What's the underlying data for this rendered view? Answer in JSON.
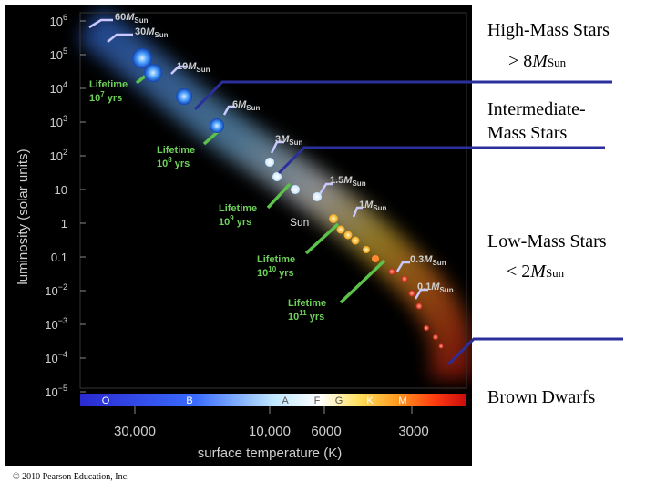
{
  "figure": {
    "ylabel": "luminosity (solar units)",
    "xlabel": "surface temperature (K)",
    "y_ticks": [
      {
        "base": "10",
        "exp": "6"
      },
      {
        "base": "10",
        "exp": "5"
      },
      {
        "base": "10",
        "exp": "4"
      },
      {
        "base": "10",
        "exp": "3"
      },
      {
        "base": "10",
        "exp": "2"
      },
      {
        "base": "10",
        "exp": ""
      },
      {
        "base": "1",
        "exp": ""
      },
      {
        "base": "0.1",
        "exp": ""
      },
      {
        "base": "10",
        "exp": "−2"
      },
      {
        "base": "10",
        "exp": "−3"
      },
      {
        "base": "10",
        "exp": "−4"
      },
      {
        "base": "10",
        "exp": "−5"
      }
    ],
    "x_ticks": [
      "30,000",
      "10,000",
      "6000",
      "3000"
    ],
    "spectral_classes": [
      "O",
      "B",
      "A",
      "F",
      "G",
      "K",
      "M"
    ],
    "mass_labels": [
      {
        "num": "60",
        "unit": "M",
        "sub": "Sun"
      },
      {
        "num": "30",
        "unit": "M",
        "sub": "Sun"
      },
      {
        "num": "10",
        "unit": "M",
        "sub": "Sun"
      },
      {
        "num": "6",
        "unit": "M",
        "sub": "Sun"
      },
      {
        "num": "3",
        "unit": "M",
        "sub": "Sun"
      },
      {
        "num": "1.5",
        "unit": "M",
        "sub": "Sun"
      },
      {
        "num": "1",
        "unit": "M",
        "sub": "Sun"
      },
      {
        "num": "0.3",
        "unit": "M",
        "sub": "Sun"
      },
      {
        "num": "0.1",
        "unit": "M",
        "sub": "Sun"
      }
    ],
    "sun_label": "Sun",
    "lifetimes": [
      {
        "word": "Lifetime",
        "base": "10",
        "exp": "7",
        "unit": "yrs"
      },
      {
        "word": "Lifetime",
        "base": "10",
        "exp": "8",
        "unit": "yrs"
      },
      {
        "word": "Lifetime",
        "base": "10",
        "exp": "9",
        "unit": "yrs"
      },
      {
        "word": "Lifetime",
        "base": "10",
        "exp": "10",
        "unit": "yrs"
      },
      {
        "word": "Lifetime",
        "base": "10",
        "exp": "11",
        "unit": "yrs"
      }
    ]
  },
  "annotations": {
    "high_mass": {
      "line1": "High-Mass Stars",
      "prefix": "> 8",
      "m": "M",
      "sub": "Sun"
    },
    "intermediate": {
      "line1": "Intermediate-",
      "line2": "Mass Stars"
    },
    "low_mass": {
      "line1": "Low-Mass Stars",
      "prefix": "< 2",
      "m": "M",
      "sub": "Sun"
    },
    "brown_dwarfs": "Brown Dwarfs"
  },
  "copyright": "© 2010 Pearson Education, Inc.",
  "colors": {
    "annotation_line": "#2b2f9c",
    "lifetime_green": "#5cc24a",
    "mass_line": "#c9c9ff"
  }
}
